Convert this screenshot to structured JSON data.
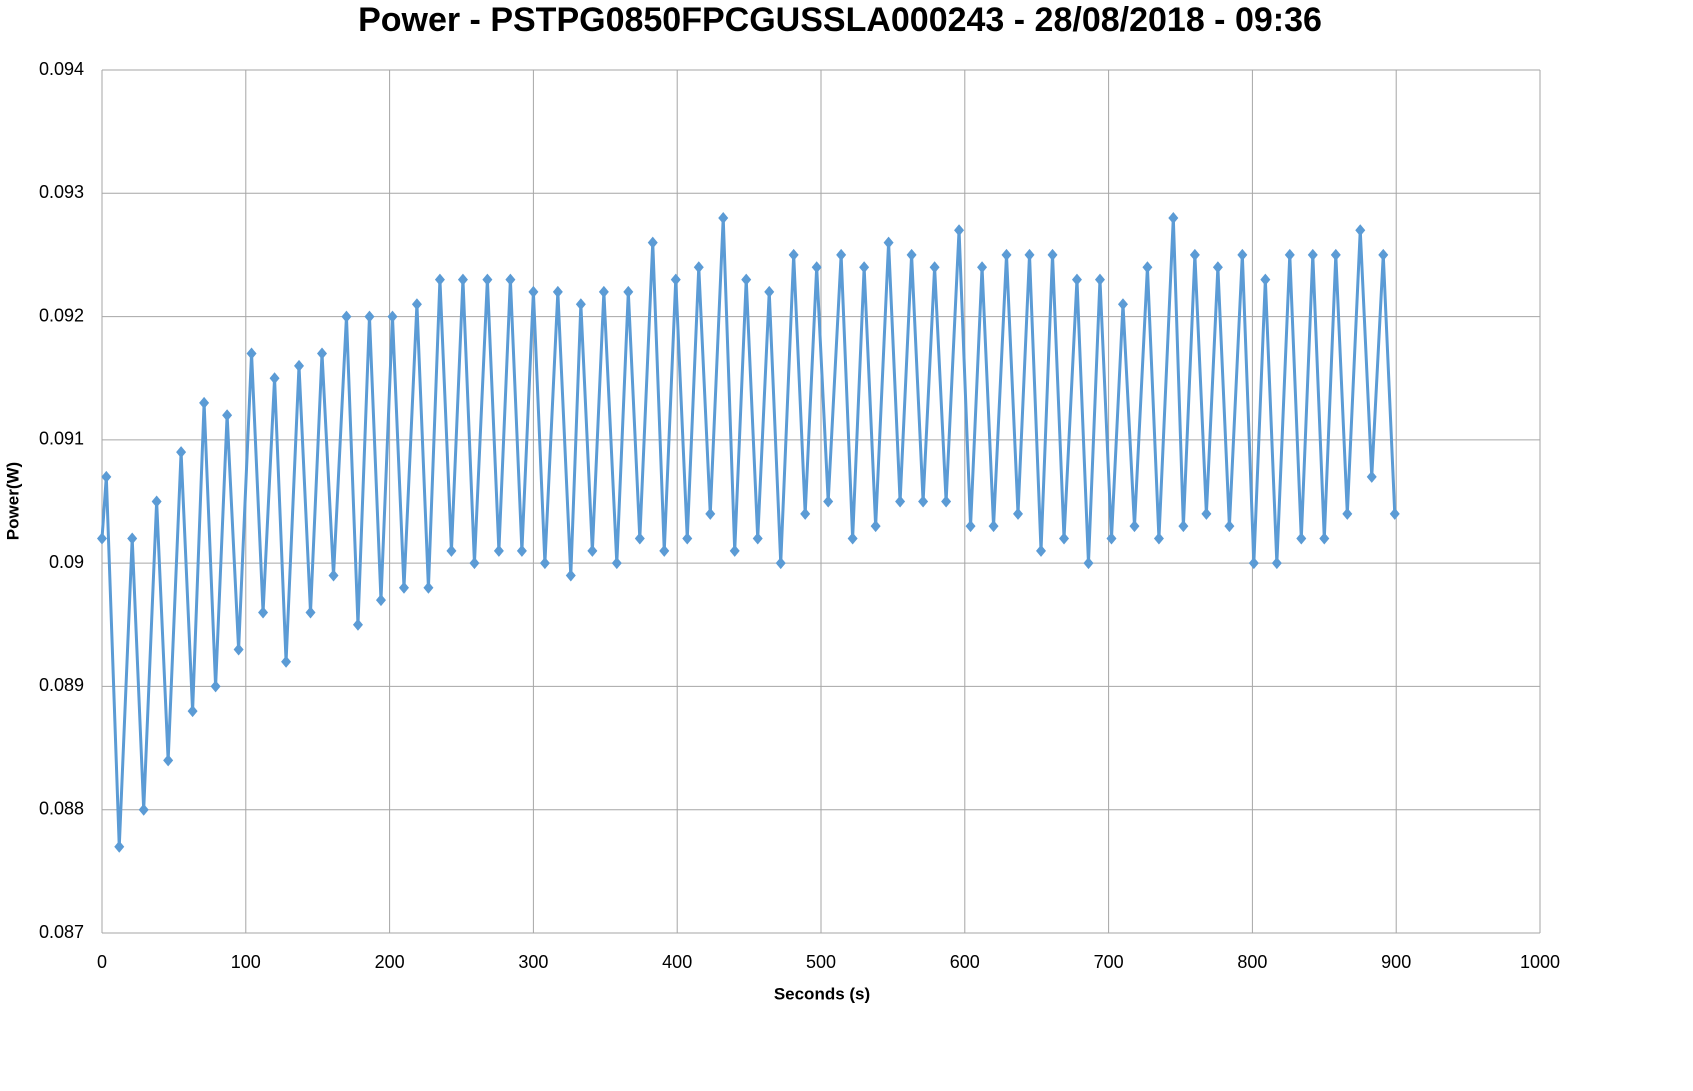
{
  "chart_data": {
    "type": "line",
    "title": "Power - PSTPG0850FPCGUSSLA000243 - 28/08/2018 - 09:36",
    "x_label": "Seconds (s)",
    "y_label": "Power(W)",
    "xlim": [
      0,
      1000
    ],
    "xticks": [
      0,
      100,
      200,
      300,
      400,
      500,
      600,
      700,
      800,
      900,
      1000
    ],
    "ylim": [
      0.087,
      0.094
    ],
    "yticks": [
      0.087,
      0.088,
      0.089,
      0.09,
      0.091,
      0.092,
      0.093,
      0.094
    ],
    "grid": true,
    "series": [
      {
        "name": "Power",
        "color": "#5b9bd5",
        "x": [
          0,
          3,
          12,
          21,
          29,
          38,
          46,
          55,
          63,
          71,
          79,
          87,
          95,
          104,
          112,
          120,
          128,
          137,
          145,
          153,
          161,
          170,
          178,
          186,
          194,
          202,
          210,
          219,
          227,
          235,
          243,
          251,
          259,
          268,
          276,
          284,
          292,
          300,
          308,
          317,
          326,
          333,
          341,
          349,
          358,
          366,
          374,
          383,
          391,
          399,
          407,
          415,
          423,
          432,
          440,
          448,
          456,
          464,
          472,
          481,
          489,
          497,
          505,
          514,
          522,
          530,
          538,
          547,
          555,
          563,
          571,
          579,
          587,
          596,
          604,
          612,
          620,
          629,
          637,
          645,
          653,
          661,
          669,
          678,
          686,
          694,
          702,
          710,
          718,
          727,
          735,
          745,
          752,
          760,
          768,
          776,
          784,
          793,
          801,
          809,
          817,
          826,
          834,
          842,
          850,
          858,
          866,
          875,
          883,
          891,
          899
        ],
        "values": [
          0.0902,
          0.0907,
          0.0877,
          0.0902,
          0.088,
          0.0905,
          0.0884,
          0.0909,
          0.0888,
          0.0913,
          0.089,
          0.0912,
          0.0893,
          0.0917,
          0.0896,
          0.0915,
          0.0892,
          0.0916,
          0.0896,
          0.0917,
          0.0899,
          0.092,
          0.0895,
          0.092,
          0.0897,
          0.092,
          0.0898,
          0.0921,
          0.0898,
          0.0923,
          0.0901,
          0.0923,
          0.09,
          0.0923,
          0.0901,
          0.0923,
          0.0901,
          0.0922,
          0.09,
          0.0922,
          0.0899,
          0.0921,
          0.0901,
          0.0922,
          0.09,
          0.0922,
          0.0902,
          0.0926,
          0.0901,
          0.0923,
          0.0902,
          0.0924,
          0.0904,
          0.0928,
          0.0901,
          0.0923,
          0.0902,
          0.0922,
          0.09,
          0.0925,
          0.0904,
          0.0924,
          0.0905,
          0.0925,
          0.0902,
          0.0924,
          0.0903,
          0.0926,
          0.0905,
          0.0925,
          0.0905,
          0.0924,
          0.0905,
          0.0927,
          0.0903,
          0.0924,
          0.0903,
          0.0925,
          0.0904,
          0.0925,
          0.0901,
          0.0925,
          0.0902,
          0.0923,
          0.09,
          0.0923,
          0.0902,
          0.0921,
          0.0903,
          0.0924,
          0.0902,
          0.0928,
          0.0903,
          0.0925,
          0.0904,
          0.0924,
          0.0903,
          0.0925,
          0.09,
          0.0923,
          0.09,
          0.0925,
          0.0902,
          0.0925,
          0.0902,
          0.0925,
          0.0904,
          0.0927,
          0.0907,
          0.0925,
          0.0904
        ]
      }
    ]
  }
}
